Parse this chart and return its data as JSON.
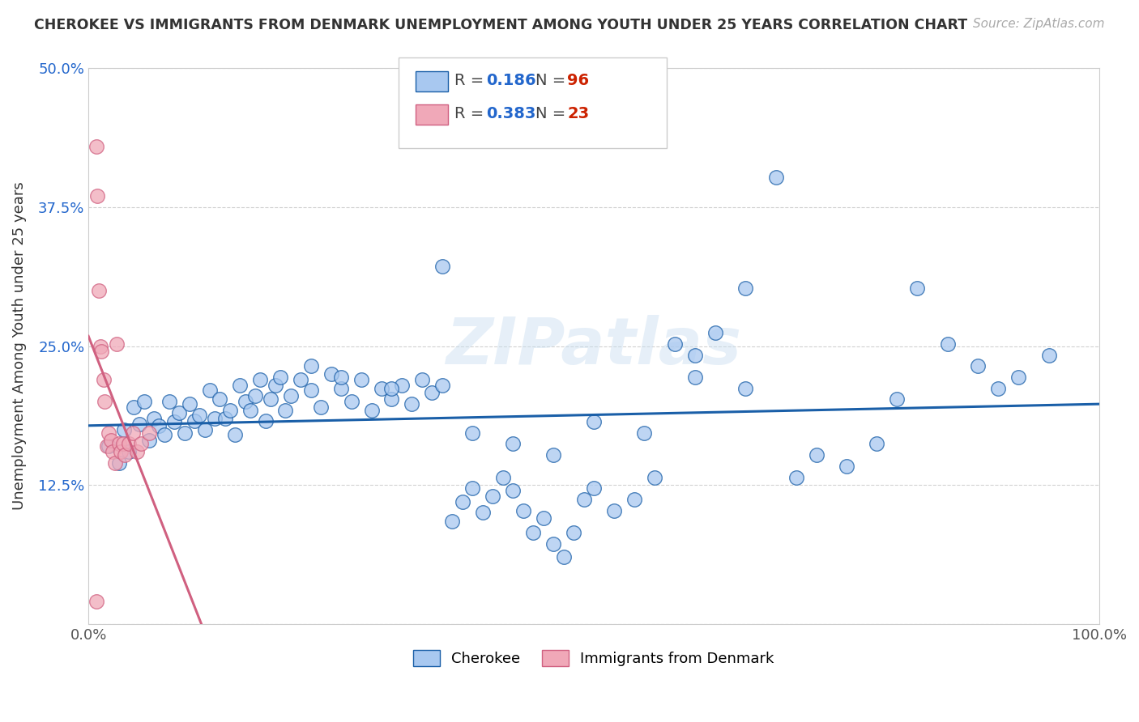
{
  "title": "CHEROKEE VS IMMIGRANTS FROM DENMARK UNEMPLOYMENT AMONG YOUTH UNDER 25 YEARS CORRELATION CHART",
  "source": "Source: ZipAtlas.com",
  "ylabel": "Unemployment Among Youth under 25 years",
  "xlim": [
    0,
    1.0
  ],
  "ylim": [
    0,
    0.5
  ],
  "legend_R1": "0.186",
  "legend_N1": "96",
  "legend_R2": "0.383",
  "legend_N2": "23",
  "color_cherokee_fill": "#a8c8f0",
  "color_cherokee_edge": "#1a5fa8",
  "color_denmark_fill": "#f0a8b8",
  "color_denmark_edge": "#d06080",
  "color_line_cherokee": "#1a5fa8",
  "color_line_denmark": "#d06080",
  "watermark": "ZIPatlas",
  "cherokee_x": [
    0.02,
    0.03,
    0.035,
    0.04,
    0.045,
    0.05,
    0.055,
    0.06,
    0.065,
    0.07,
    0.075,
    0.08,
    0.085,
    0.09,
    0.095,
    0.1,
    0.105,
    0.11,
    0.115,
    0.12,
    0.125,
    0.13,
    0.135,
    0.14,
    0.145,
    0.15,
    0.155,
    0.16,
    0.165,
    0.17,
    0.175,
    0.18,
    0.185,
    0.19,
    0.195,
    0.2,
    0.21,
    0.22,
    0.23,
    0.24,
    0.25,
    0.26,
    0.27,
    0.28,
    0.29,
    0.3,
    0.31,
    0.32,
    0.33,
    0.34,
    0.35,
    0.36,
    0.37,
    0.38,
    0.39,
    0.4,
    0.41,
    0.42,
    0.43,
    0.44,
    0.45,
    0.46,
    0.47,
    0.48,
    0.49,
    0.5,
    0.52,
    0.54,
    0.56,
    0.58,
    0.6,
    0.62,
    0.65,
    0.68,
    0.7,
    0.72,
    0.75,
    0.78,
    0.8,
    0.82,
    0.85,
    0.88,
    0.9,
    0.92,
    0.95,
    0.22,
    0.25,
    0.3,
    0.35,
    0.38,
    0.42,
    0.46,
    0.5,
    0.55,
    0.6,
    0.65
  ],
  "cherokee_y": [
    0.16,
    0.145,
    0.175,
    0.155,
    0.195,
    0.18,
    0.2,
    0.165,
    0.185,
    0.178,
    0.17,
    0.2,
    0.182,
    0.19,
    0.172,
    0.198,
    0.183,
    0.188,
    0.175,
    0.21,
    0.185,
    0.202,
    0.185,
    0.192,
    0.17,
    0.215,
    0.2,
    0.192,
    0.205,
    0.22,
    0.183,
    0.202,
    0.215,
    0.222,
    0.192,
    0.205,
    0.22,
    0.21,
    0.195,
    0.225,
    0.212,
    0.2,
    0.22,
    0.192,
    0.212,
    0.202,
    0.215,
    0.198,
    0.22,
    0.208,
    0.215,
    0.092,
    0.11,
    0.122,
    0.1,
    0.115,
    0.132,
    0.12,
    0.102,
    0.082,
    0.095,
    0.072,
    0.06,
    0.082,
    0.112,
    0.122,
    0.102,
    0.112,
    0.132,
    0.252,
    0.242,
    0.262,
    0.302,
    0.402,
    0.132,
    0.152,
    0.142,
    0.162,
    0.202,
    0.302,
    0.252,
    0.232,
    0.212,
    0.222,
    0.242,
    0.232,
    0.222,
    0.212,
    0.322,
    0.172,
    0.162,
    0.152,
    0.182,
    0.172,
    0.222,
    0.212
  ],
  "denmark_x": [
    0.008,
    0.009,
    0.01,
    0.012,
    0.013,
    0.015,
    0.016,
    0.018,
    0.02,
    0.022,
    0.024,
    0.026,
    0.028,
    0.03,
    0.032,
    0.034,
    0.036,
    0.04,
    0.044,
    0.048,
    0.052,
    0.06,
    0.008
  ],
  "denmark_y": [
    0.43,
    0.385,
    0.3,
    0.25,
    0.245,
    0.22,
    0.2,
    0.16,
    0.172,
    0.165,
    0.155,
    0.145,
    0.252,
    0.162,
    0.155,
    0.162,
    0.152,
    0.162,
    0.172,
    0.155,
    0.162,
    0.172,
    0.02
  ]
}
